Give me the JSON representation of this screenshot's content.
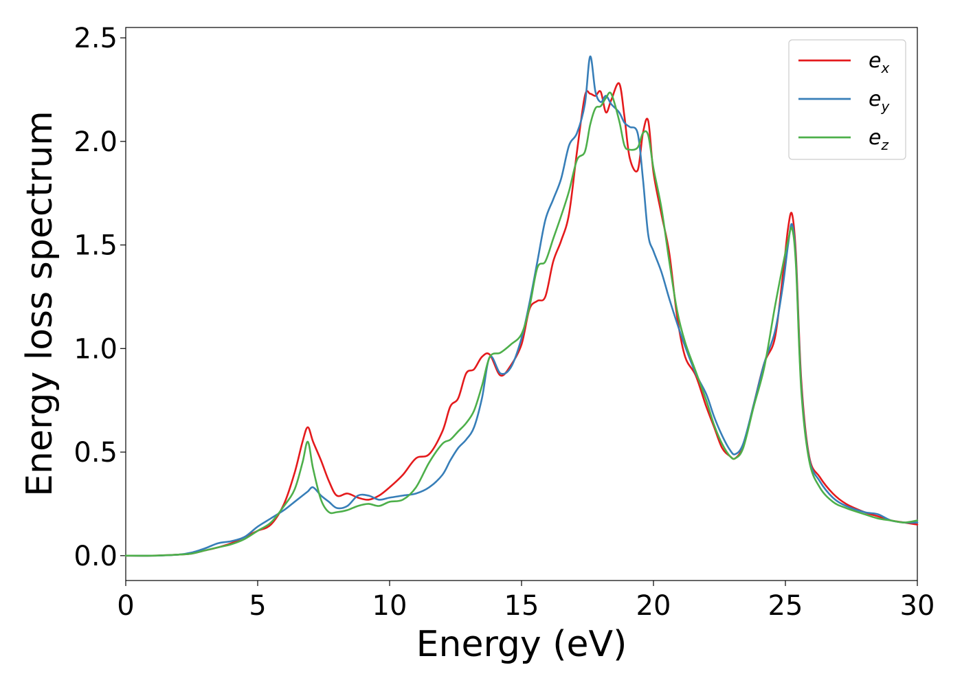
{
  "chart_data": {
    "type": "line",
    "xlabel": "Energy (eV)",
    "ylabel": "Energy loss spectrum",
    "xlim": [
      0,
      30
    ],
    "ylim": [
      -0.12,
      2.55
    ],
    "xticks": [
      0,
      5,
      10,
      15,
      20,
      25,
      30
    ],
    "xtick_labels": [
      "0",
      "5",
      "10",
      "15",
      "20",
      "25",
      "30"
    ],
    "yticks": [
      0.0,
      0.5,
      1.0,
      1.5,
      2.0,
      2.5
    ],
    "ytick_labels": [
      "0.0",
      "0.5",
      "1.0",
      "1.5",
      "2.0",
      "2.5"
    ],
    "grid": false,
    "legend_position": "top-right",
    "series": [
      {
        "name": "e_x",
        "legend_base": "e",
        "legend_sub": "x",
        "color": "#e41a1c",
        "x": [
          0,
          1,
          2,
          2.5,
          3,
          3.5,
          4,
          4.5,
          5,
          5.5,
          6,
          6.4,
          6.7,
          6.9,
          7.1,
          7.4,
          7.7,
          8,
          8.4,
          8.8,
          9.2,
          9.6,
          10,
          10.5,
          11,
          11.5,
          12,
          12.3,
          12.6,
          12.9,
          13.2,
          13.5,
          13.8,
          14.2,
          14.6,
          15,
          15.3,
          15.6,
          15.9,
          16.2,
          16.5,
          16.8,
          17.1,
          17.4,
          17.6,
          17.8,
          18,
          18.2,
          18.4,
          18.7,
          18.9,
          19.1,
          19.4,
          19.6,
          19.8,
          20,
          20.3,
          20.6,
          20.9,
          21.2,
          21.6,
          22,
          22.3,
          22.6,
          22.9,
          23.1,
          23.4,
          23.8,
          24.2,
          24.6,
          24.9,
          25.1,
          25.25,
          25.4,
          25.6,
          25.9,
          26.3,
          26.8,
          27.3,
          28,
          28.5,
          29,
          29.5,
          30
        ],
        "y": [
          0,
          0,
          0.005,
          0.01,
          0.025,
          0.04,
          0.06,
          0.09,
          0.12,
          0.15,
          0.25,
          0.4,
          0.55,
          0.62,
          0.55,
          0.46,
          0.36,
          0.29,
          0.3,
          0.28,
          0.27,
          0.29,
          0.33,
          0.39,
          0.47,
          0.49,
          0.6,
          0.72,
          0.76,
          0.88,
          0.9,
          0.96,
          0.97,
          0.87,
          0.92,
          1.02,
          1.19,
          1.23,
          1.25,
          1.42,
          1.52,
          1.65,
          1.95,
          2.22,
          2.23,
          2.22,
          2.24,
          2.14,
          2.2,
          2.28,
          2.12,
          1.92,
          1.86,
          2.04,
          2.1,
          1.85,
          1.65,
          1.46,
          1.15,
          0.96,
          0.87,
          0.72,
          0.62,
          0.52,
          0.48,
          0.47,
          0.53,
          0.73,
          0.93,
          1.05,
          1.35,
          1.58,
          1.65,
          1.45,
          0.85,
          0.48,
          0.38,
          0.3,
          0.25,
          0.21,
          0.19,
          0.17,
          0.16,
          0.15
        ]
      },
      {
        "name": "e_y",
        "legend_base": "e",
        "legend_sub": "y",
        "color": "#377eb8",
        "x": [
          0,
          1,
          2,
          2.5,
          3,
          3.5,
          4,
          4.5,
          5,
          5.5,
          6,
          6.4,
          6.7,
          6.9,
          7.1,
          7.4,
          7.7,
          8,
          8.4,
          8.8,
          9.2,
          9.6,
          10,
          10.5,
          11,
          11.5,
          12,
          12.3,
          12.6,
          12.9,
          13.2,
          13.5,
          13.8,
          14.2,
          14.6,
          15,
          15.3,
          15.6,
          15.9,
          16.2,
          16.5,
          16.8,
          17.1,
          17.4,
          17.6,
          17.8,
          18,
          18.2,
          18.4,
          18.7,
          18.9,
          19.1,
          19.4,
          19.6,
          19.8,
          20,
          20.3,
          20.6,
          20.9,
          21.2,
          21.6,
          22,
          22.3,
          22.6,
          22.9,
          23.1,
          23.4,
          23.8,
          24.2,
          24.6,
          24.9,
          25.1,
          25.25,
          25.4,
          25.6,
          25.9,
          26.3,
          26.8,
          27.3,
          28,
          28.5,
          29,
          29.5,
          30
        ],
        "y": [
          0,
          0,
          0.005,
          0.015,
          0.035,
          0.06,
          0.07,
          0.09,
          0.14,
          0.18,
          0.22,
          0.26,
          0.29,
          0.31,
          0.33,
          0.29,
          0.26,
          0.23,
          0.24,
          0.29,
          0.29,
          0.27,
          0.28,
          0.29,
          0.3,
          0.33,
          0.39,
          0.46,
          0.52,
          0.56,
          0.62,
          0.76,
          0.96,
          0.88,
          0.91,
          1.05,
          1.22,
          1.42,
          1.62,
          1.72,
          1.82,
          1.98,
          2.04,
          2.18,
          2.41,
          2.24,
          2.19,
          2.22,
          2.18,
          2.14,
          2.09,
          2.07,
          2.04,
          1.82,
          1.55,
          1.47,
          1.37,
          1.24,
          1.12,
          1.01,
          0.88,
          0.78,
          0.67,
          0.58,
          0.51,
          0.49,
          0.54,
          0.73,
          0.93,
          1.08,
          1.3,
          1.5,
          1.6,
          1.42,
          0.82,
          0.47,
          0.36,
          0.28,
          0.24,
          0.21,
          0.2,
          0.17,
          0.16,
          0.16
        ]
      },
      {
        "name": "e_z",
        "legend_base": "e",
        "legend_sub": "z",
        "color": "#4daf4a",
        "x": [
          0,
          1,
          2,
          2.5,
          3,
          3.5,
          4,
          4.5,
          5,
          5.5,
          6,
          6.4,
          6.7,
          6.9,
          7.1,
          7.4,
          7.7,
          8,
          8.4,
          8.8,
          9.2,
          9.6,
          10,
          10.5,
          11,
          11.5,
          12,
          12.3,
          12.6,
          12.9,
          13.2,
          13.5,
          13.8,
          14.2,
          14.6,
          15,
          15.3,
          15.6,
          15.9,
          16.2,
          16.5,
          16.8,
          17.1,
          17.4,
          17.6,
          17.8,
          18,
          18.2,
          18.4,
          18.7,
          18.9,
          19.1,
          19.4,
          19.6,
          19.8,
          20,
          20.3,
          20.6,
          20.9,
          21.2,
          21.6,
          22,
          22.3,
          22.6,
          22.9,
          23.1,
          23.4,
          23.8,
          24.2,
          24.6,
          24.9,
          25.1,
          25.25,
          25.4,
          25.6,
          25.9,
          26.3,
          26.8,
          27.3,
          28,
          28.5,
          29,
          29.5,
          30
        ],
        "y": [
          0,
          0,
          0.005,
          0.01,
          0.025,
          0.04,
          0.055,
          0.08,
          0.12,
          0.16,
          0.24,
          0.32,
          0.45,
          0.55,
          0.42,
          0.27,
          0.21,
          0.21,
          0.22,
          0.24,
          0.25,
          0.24,
          0.26,
          0.27,
          0.33,
          0.45,
          0.54,
          0.56,
          0.6,
          0.64,
          0.7,
          0.82,
          0.96,
          0.98,
          1.02,
          1.07,
          1.2,
          1.39,
          1.42,
          1.53,
          1.64,
          1.76,
          1.91,
          1.95,
          2.08,
          2.16,
          2.17,
          2.21,
          2.23,
          2.1,
          1.98,
          1.96,
          1.97,
          2.04,
          2.03,
          1.87,
          1.68,
          1.42,
          1.18,
          1.03,
          0.89,
          0.75,
          0.63,
          0.54,
          0.48,
          0.47,
          0.52,
          0.72,
          0.91,
          1.2,
          1.4,
          1.52,
          1.58,
          1.4,
          0.8,
          0.46,
          0.33,
          0.26,
          0.23,
          0.2,
          0.18,
          0.17,
          0.16,
          0.17
        ]
      }
    ]
  }
}
